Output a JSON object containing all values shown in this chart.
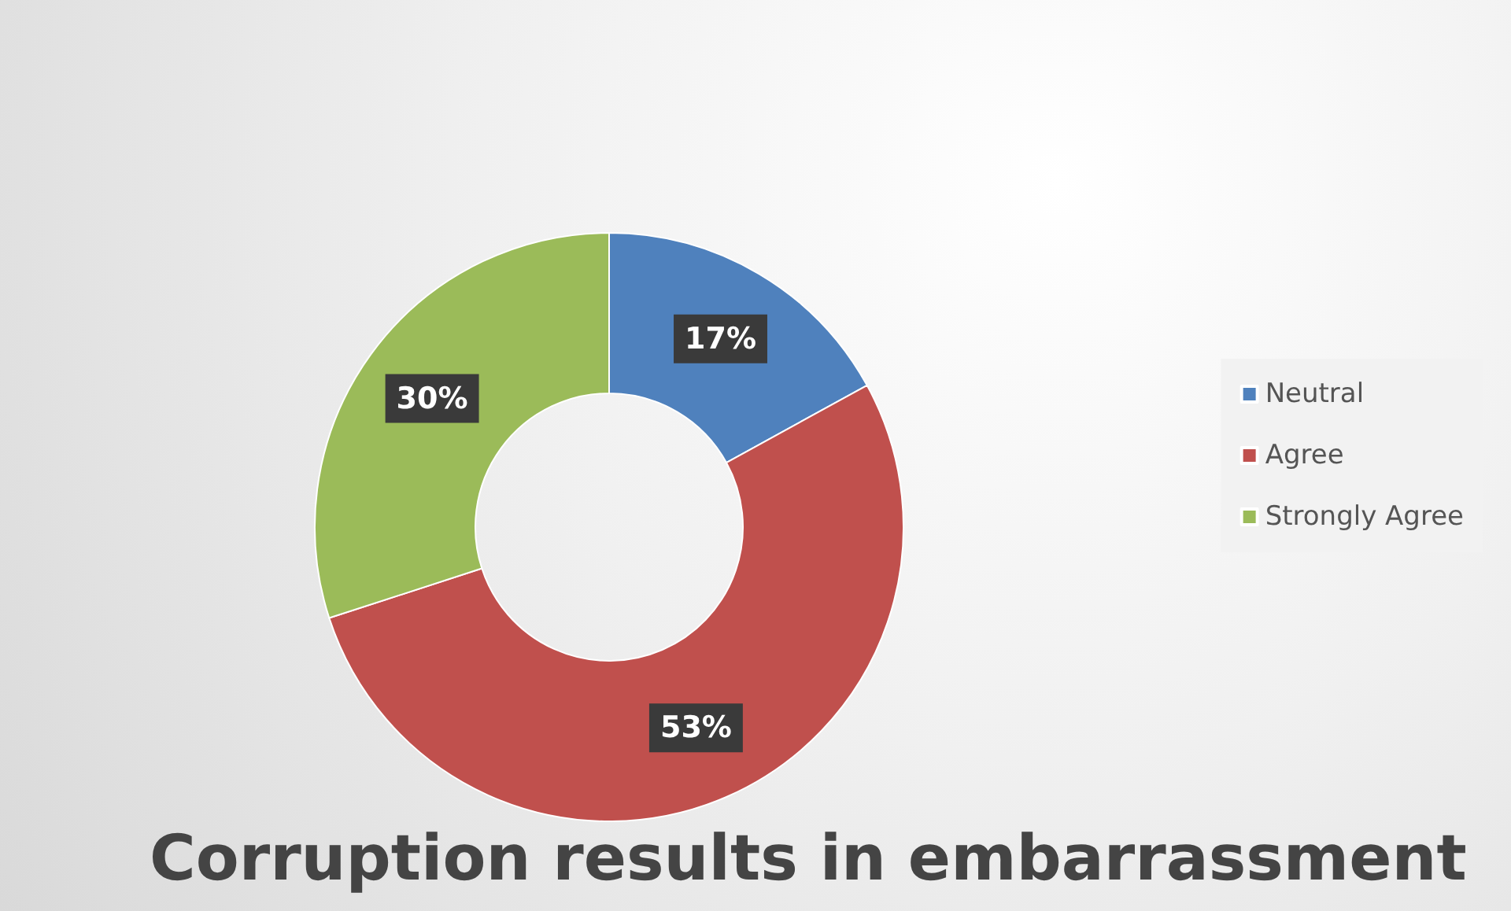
{
  "chart_data": {
    "type": "donut",
    "title": "Corruption results in embarrassment",
    "categories": [
      "Neutral",
      "Agree",
      "Strongly Agree"
    ],
    "values": [
      17,
      53,
      30
    ],
    "colors": [
      "#4f81bd",
      "#c0504d",
      "#9bbb59"
    ],
    "value_labels": [
      "17%",
      "53%",
      "30%"
    ],
    "legend": "right"
  }
}
